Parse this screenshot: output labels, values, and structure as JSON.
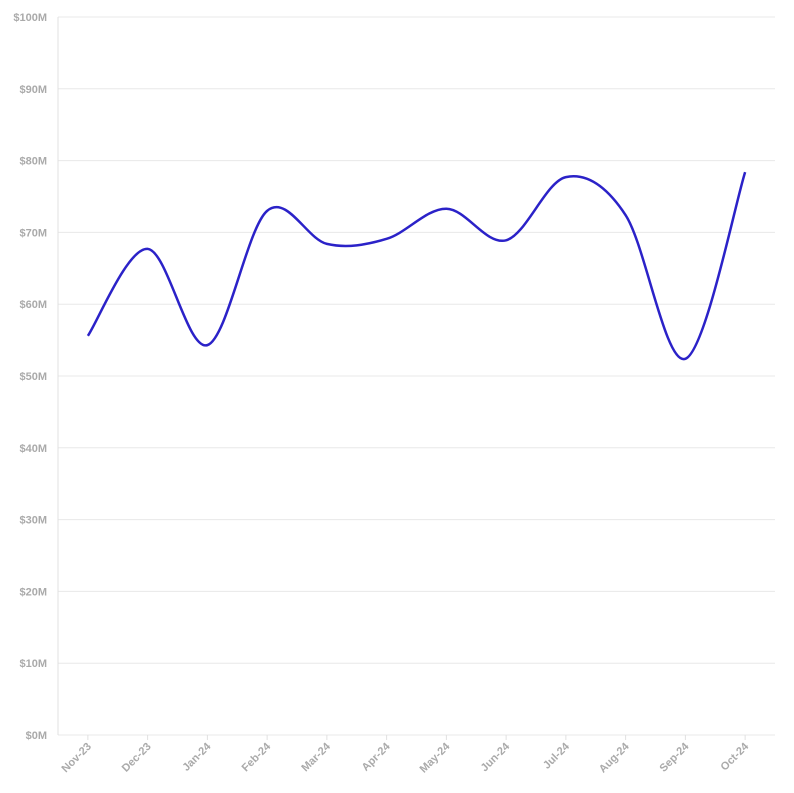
{
  "chart_data": {
    "type": "line",
    "categories": [
      "Nov-23",
      "Dec-23",
      "Jan-24",
      "Feb-24",
      "Mar-24",
      "Apr-24",
      "May-24",
      "Jun-24",
      "Jul-24",
      "Aug-24",
      "Sep-24",
      "Oct-24"
    ],
    "series": [
      {
        "color": "#2b22c8",
        "values": [
          55.6,
          67.7,
          54.3,
          73.0,
          68.4,
          69.1,
          73.3,
          68.9,
          77.7,
          72.4,
          52.4,
          78.4
        ]
      }
    ],
    "ylim": [
      0,
      100
    ],
    "yticks": [
      {
        "value": 0,
        "label": "$0M"
      },
      {
        "value": 10,
        "label": "$10M"
      },
      {
        "value": 20,
        "label": "$20M"
      },
      {
        "value": 30,
        "label": "$30M"
      },
      {
        "value": 40,
        "label": "$40M"
      },
      {
        "value": 50,
        "label": "$50M"
      },
      {
        "value": 60,
        "label": "$60M"
      },
      {
        "value": 70,
        "label": "$70M"
      },
      {
        "value": 80,
        "label": "$80M"
      },
      {
        "value": 90,
        "label": "$90M"
      },
      {
        "value": 100,
        "label": "$100M"
      }
    ],
    "grid": true
  }
}
